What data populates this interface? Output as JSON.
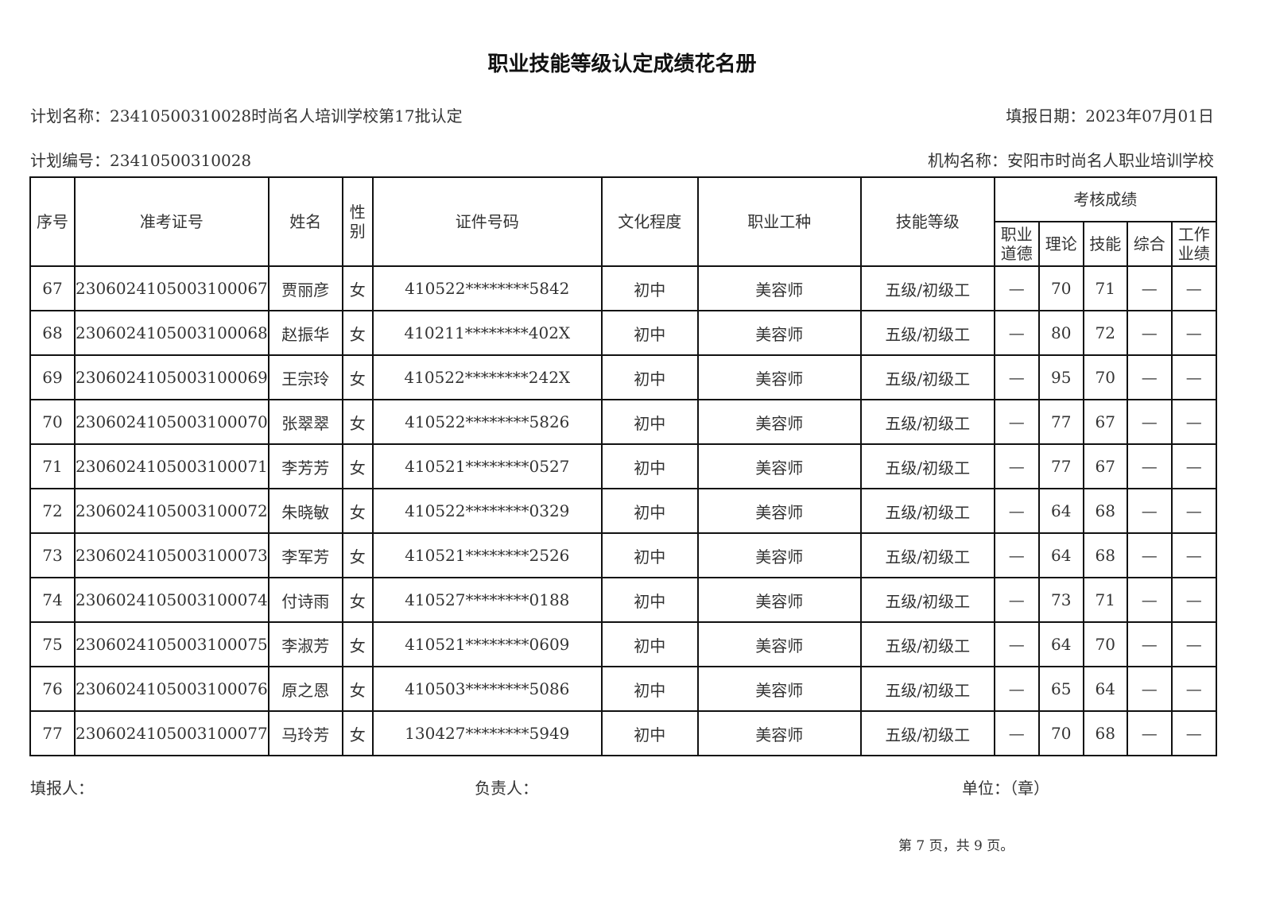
{
  "title": "职业技能等级认定成绩花名册",
  "plan_name": "计划名称：23410500310028时尚名人培训学校第17批认定",
  "report_date": "填报日期：2023年07月01日",
  "plan_number": "计划编号：23410500310028",
  "org_name": "机构名称：安阳市时尚名人职业培训学校",
  "headers": {
    "seq": "序号",
    "ticket": "准考证号",
    "name": "姓名",
    "gender": "性别",
    "id": "证件号码",
    "edu": "文化程度",
    "job": "职业工种",
    "level": "技能等级",
    "scores": "考核成绩",
    "ethics": "职业道德",
    "theory": "理论",
    "skill": "技能",
    "overall": "综合",
    "work": "工作业绩"
  },
  "rows": [
    [
      "67",
      "2306024105003100067",
      "贾丽彦",
      "女",
      "410522********5842",
      "初中",
      "美容师",
      "五级/初级工",
      "—",
      "70",
      "71",
      "—",
      "—"
    ],
    [
      "68",
      "2306024105003100068",
      "赵振华",
      "女",
      "410211********402X",
      "初中",
      "美容师",
      "五级/初级工",
      "—",
      "80",
      "72",
      "—",
      "—"
    ],
    [
      "69",
      "2306024105003100069",
      "王宗玲",
      "女",
      "410522********242X",
      "初中",
      "美容师",
      "五级/初级工",
      "—",
      "95",
      "70",
      "—",
      "—"
    ],
    [
      "70",
      "2306024105003100070",
      "张翠翠",
      "女",
      "410522********5826",
      "初中",
      "美容师",
      "五级/初级工",
      "—",
      "77",
      "67",
      "—",
      "—"
    ],
    [
      "71",
      "2306024105003100071",
      "李芳芳",
      "女",
      "410521********0527",
      "初中",
      "美容师",
      "五级/初级工",
      "—",
      "77",
      "67",
      "—",
      "—"
    ],
    [
      "72",
      "2306024105003100072",
      "朱晓敏",
      "女",
      "410522********0329",
      "初中",
      "美容师",
      "五级/初级工",
      "—",
      "64",
      "68",
      "—",
      "—"
    ],
    [
      "73",
      "2306024105003100073",
      "李军芳",
      "女",
      "410521********2526",
      "初中",
      "美容师",
      "五级/初级工",
      "—",
      "64",
      "68",
      "—",
      "—"
    ],
    [
      "74",
      "2306024105003100074",
      "付诗雨",
      "女",
      "410527********0188",
      "初中",
      "美容师",
      "五级/初级工",
      "—",
      "73",
      "71",
      "—",
      "—"
    ],
    [
      "75",
      "2306024105003100075",
      "李淑芳",
      "女",
      "410521********0609",
      "初中",
      "美容师",
      "五级/初级工",
      "—",
      "64",
      "70",
      "—",
      "—"
    ],
    [
      "76",
      "2306024105003100076",
      "原之恩",
      "女",
      "410503********5086",
      "初中",
      "美容师",
      "五级/初级工",
      "—",
      "65",
      "64",
      "—",
      "—"
    ],
    [
      "77",
      "2306024105003100077",
      "马玲芳",
      "女",
      "130427********5949",
      "初中",
      "美容师",
      "五级/初级工",
      "—",
      "70",
      "68",
      "—",
      "—"
    ]
  ],
  "footer": {
    "filler": "填报人：",
    "leader": "负责人：",
    "unit": "单位：（章）"
  },
  "page_number": "第 7 页，共 9 页。"
}
